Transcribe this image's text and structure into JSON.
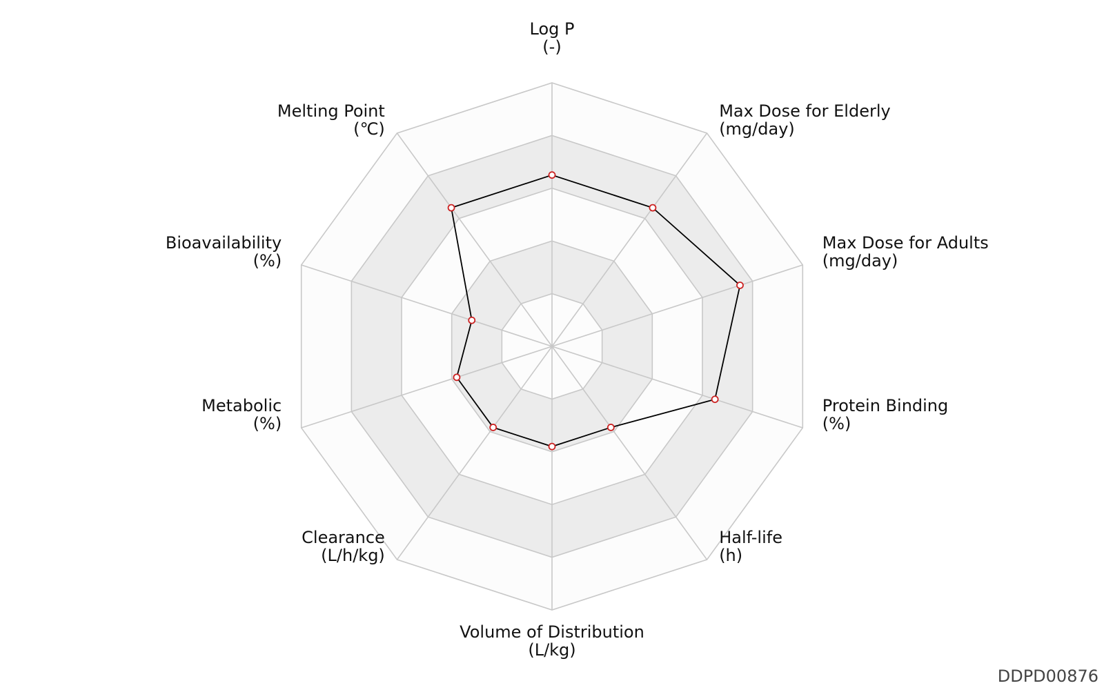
{
  "chart_data": {
    "type": "radar",
    "axes": [
      {
        "name": "Log P",
        "unit": "(-)"
      },
      {
        "name": "Max Dose for Elderly",
        "unit": "(mg/day)"
      },
      {
        "name": "Max Dose for Adults",
        "unit": "(mg/day)"
      },
      {
        "name": "Protein Binding",
        "unit": "(%)"
      },
      {
        "name": "Half-life",
        "unit": "(h)"
      },
      {
        "name": "Volume of Distribution",
        "unit": "(L/kg)"
      },
      {
        "name": "Clearance",
        "unit": "(L/h/kg)"
      },
      {
        "name": "Metabolic",
        "unit": "(%)"
      },
      {
        "name": "Bioavailability",
        "unit": "(%)"
      },
      {
        "name": "Melting Point",
        "unit": "(℃)"
      }
    ],
    "series": [
      {
        "values": [
          0.65,
          0.65,
          0.75,
          0.65,
          0.38,
          0.38,
          0.38,
          0.38,
          0.32,
          0.65
        ]
      }
    ],
    "range": [
      0,
      1
    ],
    "rings": 5,
    "band_fill": "#ececec",
    "ring_fill": "#fcfcfc",
    "grid_color": "#c8c8c8",
    "line_color": "#000000",
    "marker_color": "#cc2222"
  },
  "watermark": "DDPD00876"
}
